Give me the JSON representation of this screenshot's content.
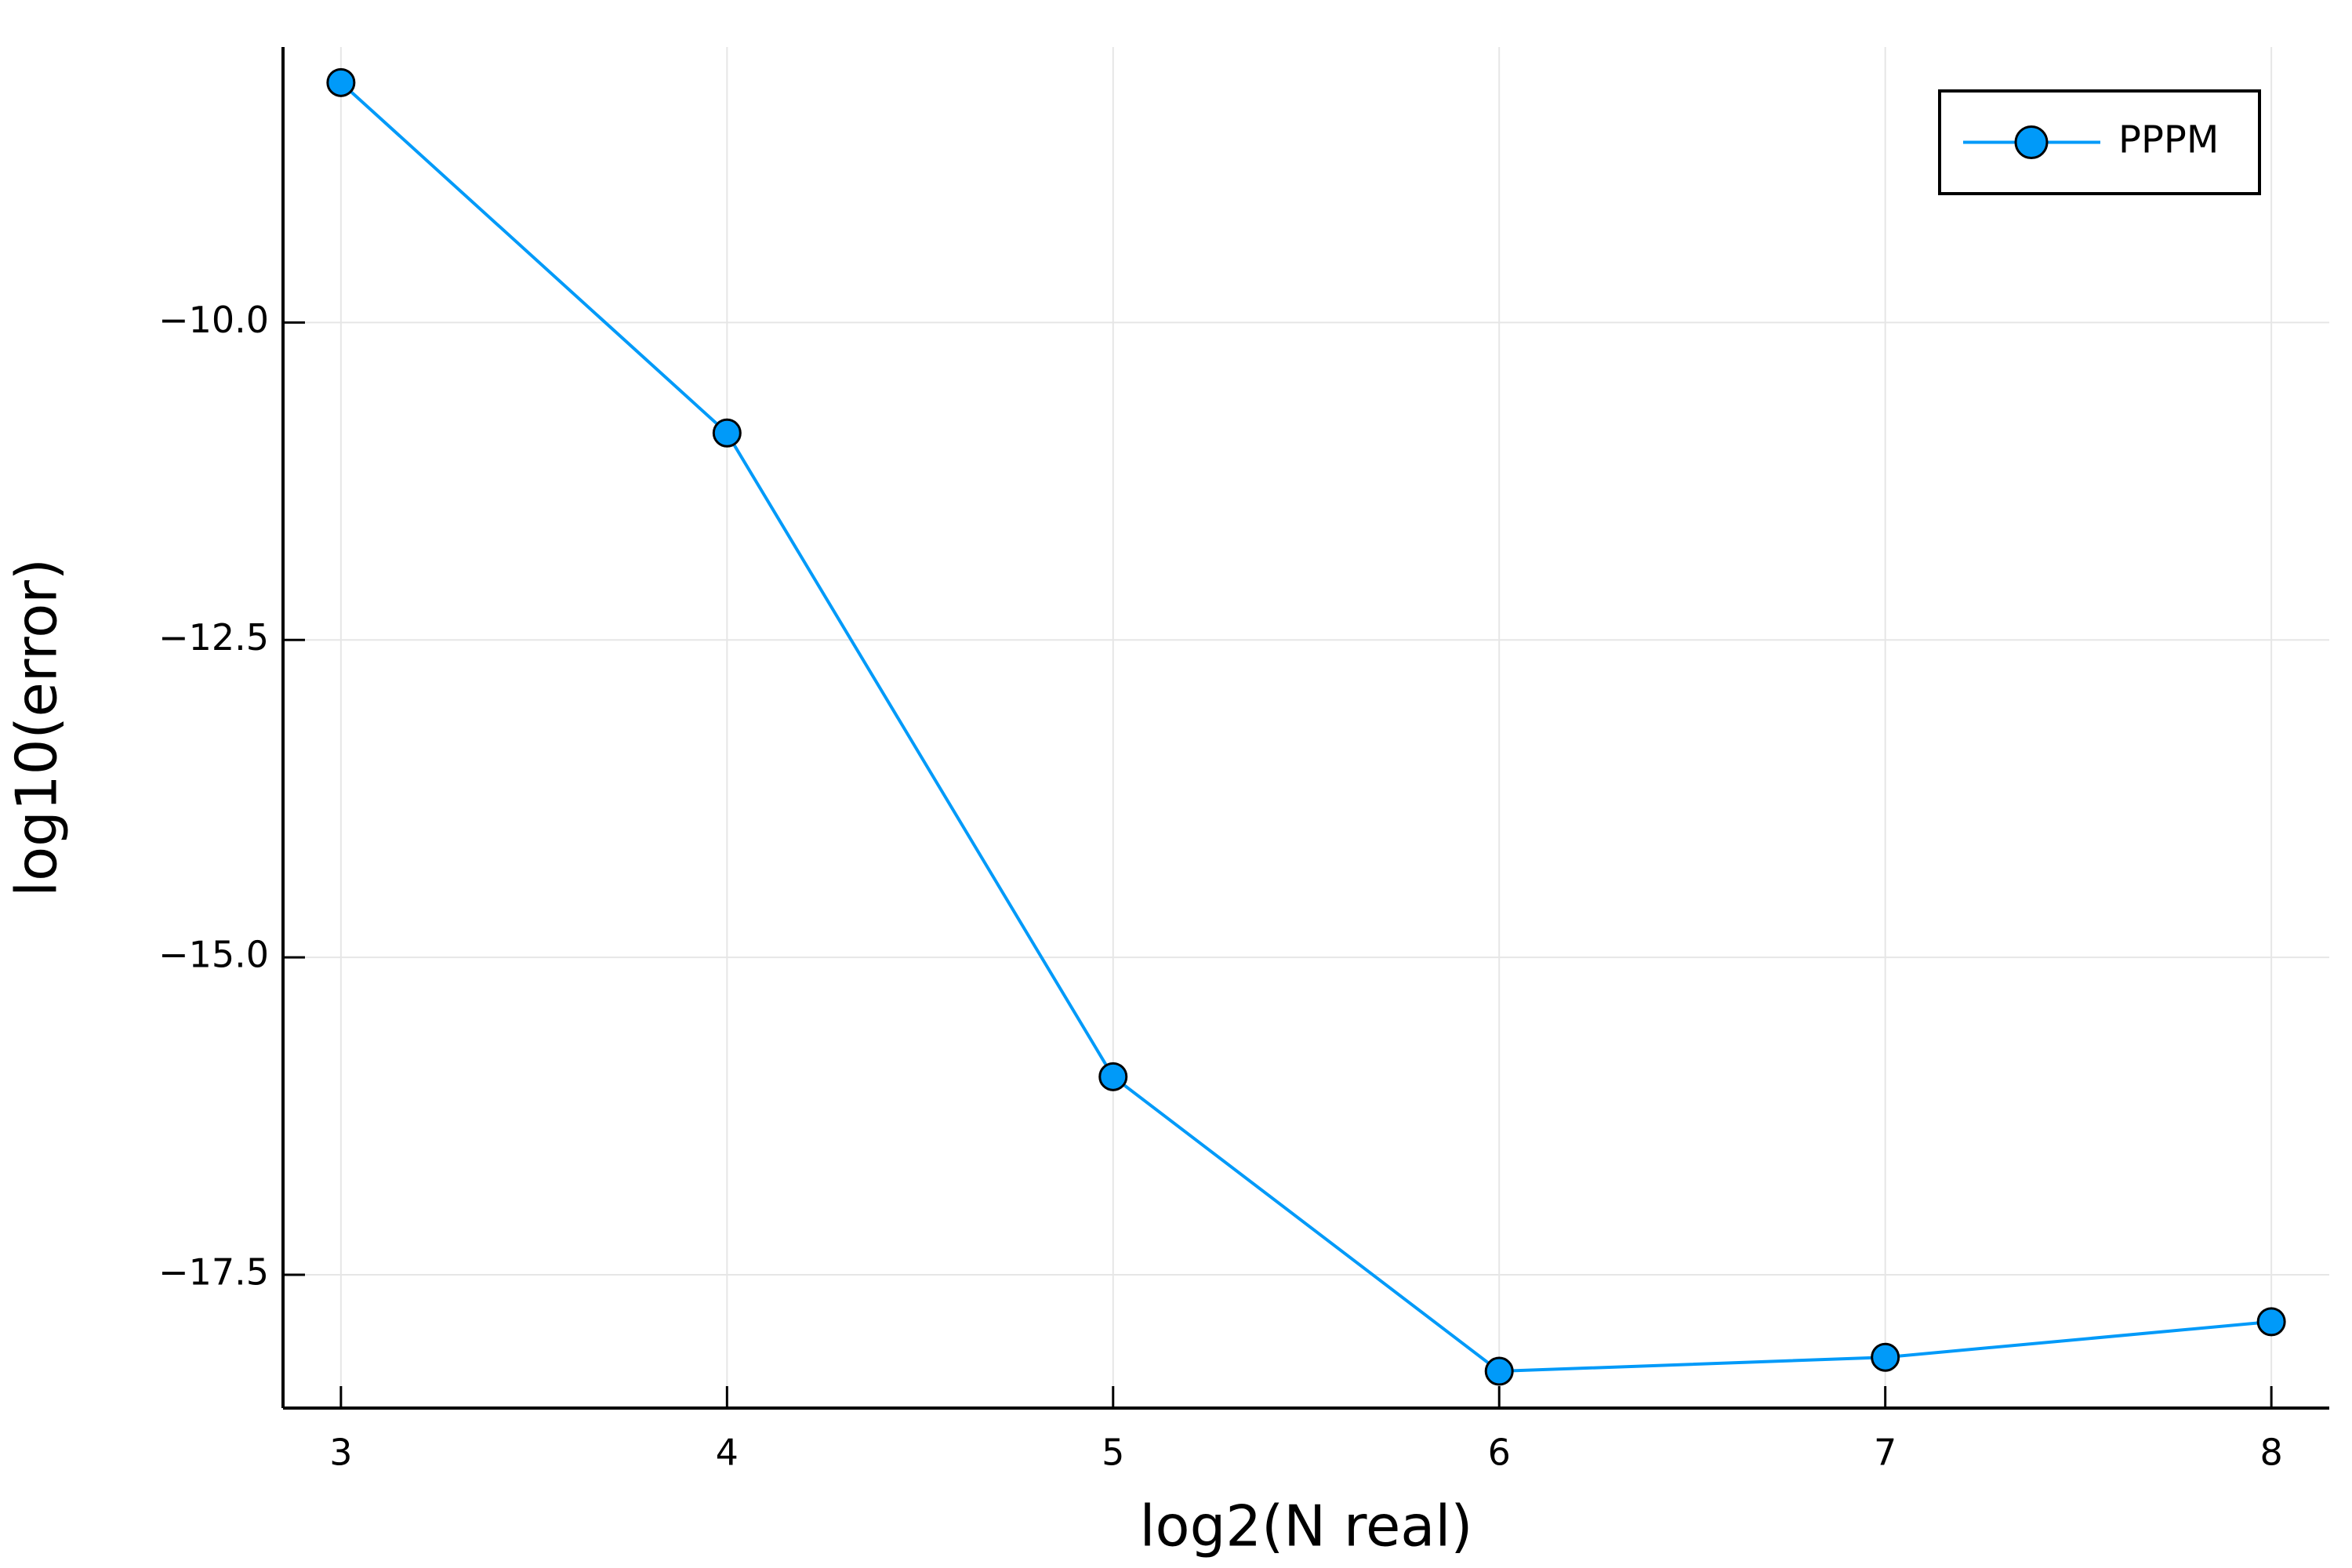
{
  "chart_data": {
    "type": "line",
    "x_label": "log2(N real)",
    "y_label": "log10(error)",
    "x": [
      3,
      4,
      5,
      6,
      7,
      8
    ],
    "series": [
      {
        "name": "PPPM",
        "color": "#009af9",
        "values": [
          -8.11,
          -10.87,
          -15.94,
          -18.26,
          -18.15,
          -17.87
        ]
      }
    ],
    "xlim": [
      2.85,
      8.15
    ],
    "ylim": [
      -18.55,
      -7.83
    ],
    "xticks": [
      3,
      4,
      5,
      6,
      7,
      8
    ],
    "yticks": [
      {
        "value": -10,
        "label": "−10.0"
      },
      {
        "value": -12.5,
        "label": "−12.5"
      },
      {
        "value": -15,
        "label": "−15.0"
      },
      {
        "value": -17.5,
        "label": "−17.5"
      }
    ],
    "grid": true,
    "legend": "top-right"
  }
}
